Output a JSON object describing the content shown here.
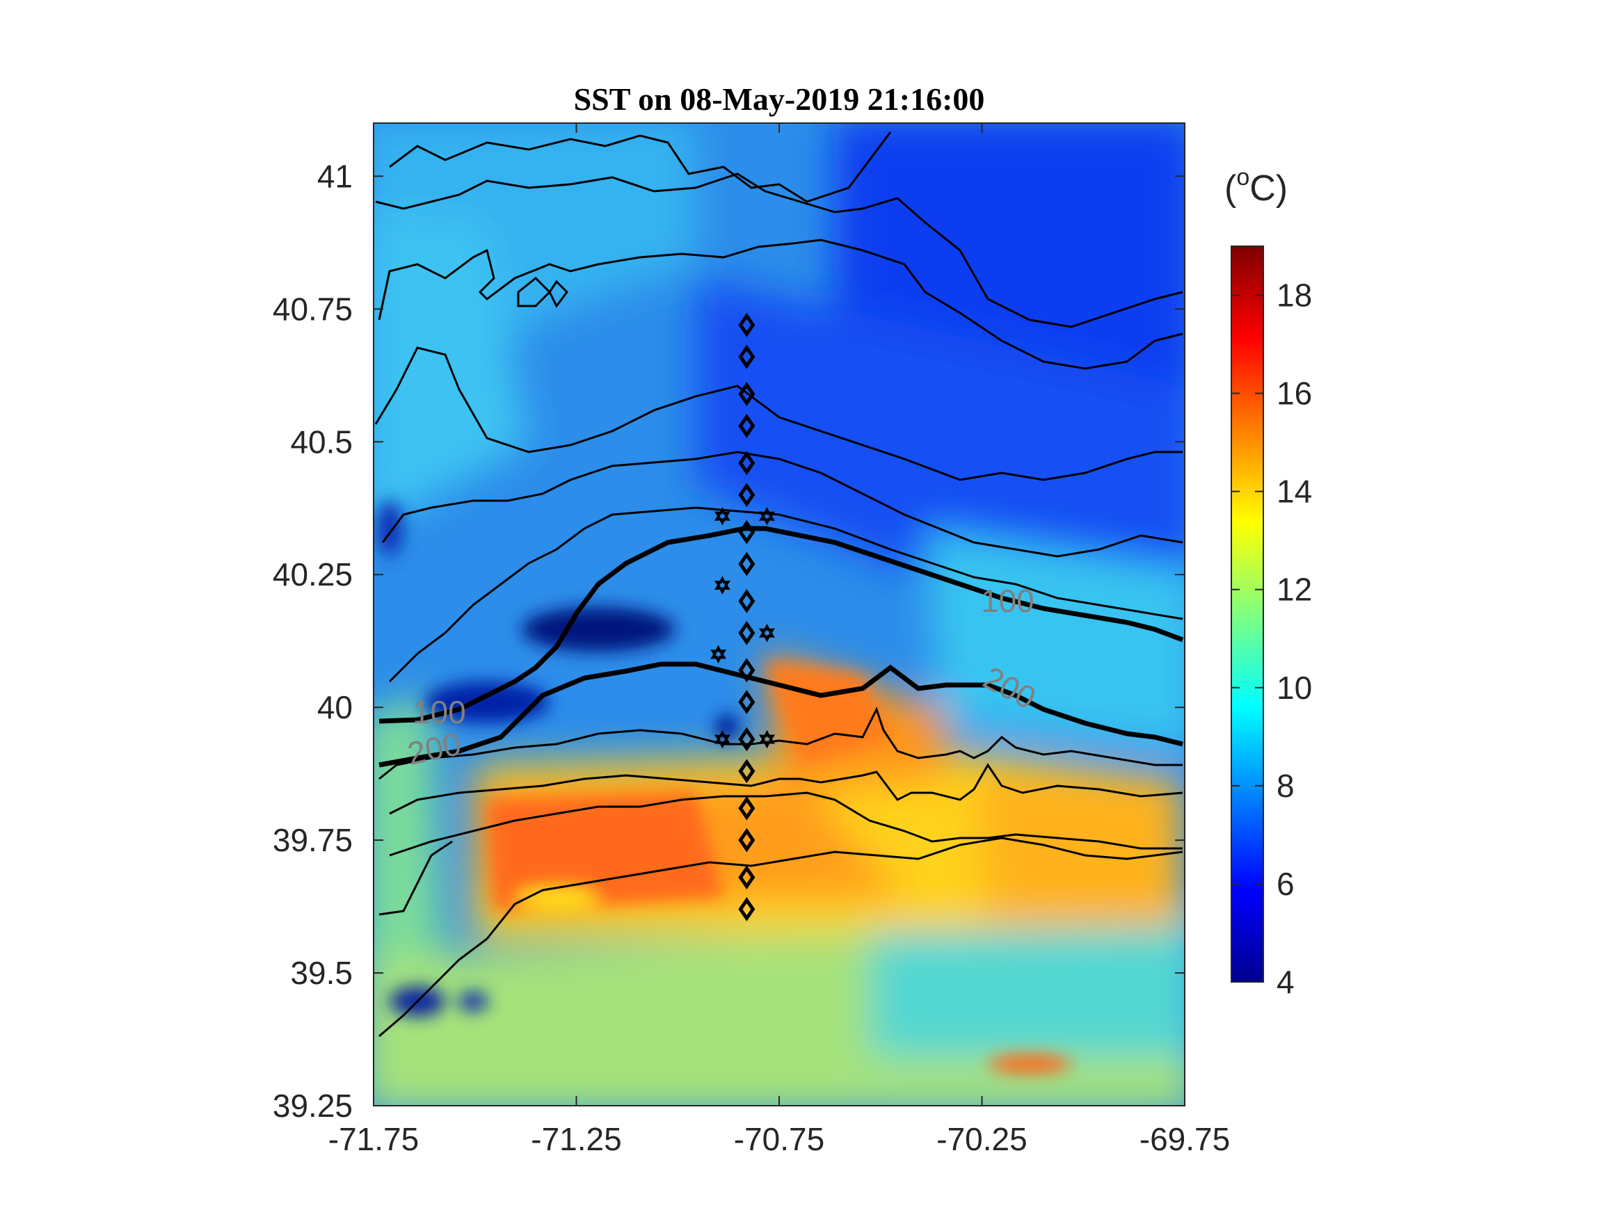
{
  "title": "SST on 08-May-2019 21:16:00",
  "colorbar": {
    "unit_base": "(",
    "unit_sup": "o",
    "unit_tail": "C)",
    "ticks": [
      "18",
      "16",
      "14",
      "12",
      "10",
      "8",
      "6",
      "4"
    ],
    "range": [
      4,
      19
    ]
  },
  "chart_data": {
    "type": "heatmap",
    "title": "SST on 08-May-2019 21:16:00",
    "xlabel": "",
    "ylabel": "",
    "xlim": [
      -71.75,
      -69.75
    ],
    "ylim": [
      39.25,
      41.1
    ],
    "xticks": [
      "-71.75",
      "-71.25",
      "-70.75",
      "-70.25",
      "-69.75"
    ],
    "yticks": [
      "41",
      "40.75",
      "40.5",
      "40.25",
      "40",
      "39.75",
      "39.5",
      "39.25"
    ],
    "colormap": "jet",
    "color_range": [
      4,
      19
    ],
    "contour_labels": [
      {
        "text": "100",
        "lon": -71.6,
        "lat": 40.0
      },
      {
        "text": "200",
        "lon": -71.62,
        "lat": 39.92
      },
      {
        "text": "100",
        "lon": -70.17,
        "lat": 40.2
      },
      {
        "text": "200",
        "lon": -70.1,
        "lat": 40.02
      }
    ],
    "stations_diamond": [
      40.72,
      40.66,
      40.59,
      40.53,
      40.46,
      40.4,
      40.33,
      40.27,
      40.2,
      40.14,
      40.07,
      40.01,
      39.94,
      39.88,
      39.81,
      39.75,
      39.68,
      39.62
    ],
    "stations_diamond_lon": -70.83,
    "stations_star": [
      {
        "lon": -70.89,
        "lat": 40.36
      },
      {
        "lon": -70.78,
        "lat": 40.36
      },
      {
        "lon": -70.89,
        "lat": 40.23
      },
      {
        "lon": -70.78,
        "lat": 40.14
      },
      {
        "lon": -70.9,
        "lat": 40.1
      },
      {
        "lon": -70.89,
        "lat": 39.94
      },
      {
        "lon": -70.78,
        "lat": 39.94
      }
    ]
  }
}
